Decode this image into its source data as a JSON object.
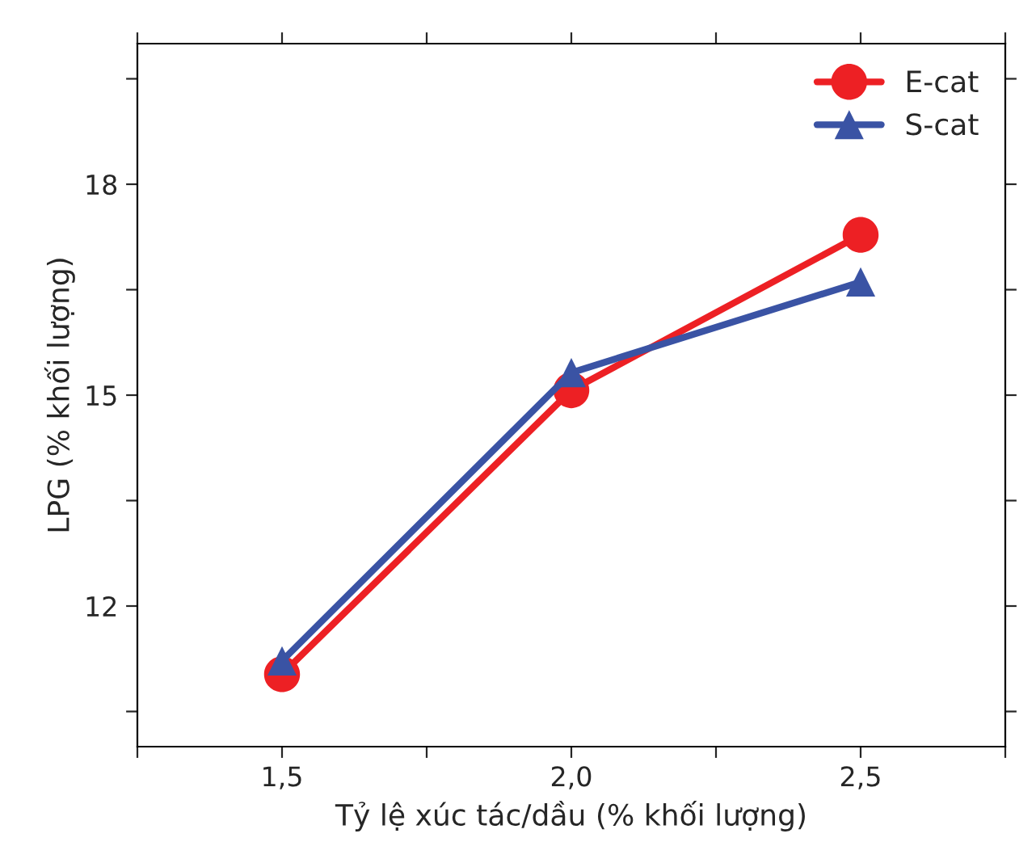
{
  "chart_data": {
    "type": "line",
    "xlabel": "Tỷ lệ xúc tác/dầu (% khối lượng)",
    "ylabel": "LPG (% khối lượng)",
    "x": [
      1.5,
      2.0,
      2.5
    ],
    "series": [
      {
        "name": "E-cat",
        "color": "#ed2024",
        "marker": "circle",
        "values": [
          11.03,
          15.07,
          17.28
        ]
      },
      {
        "name": "S-cat",
        "color": "#3a53a4",
        "marker": "triangle",
        "values": [
          11.22,
          15.32,
          16.61
        ]
      }
    ],
    "xlim": [
      1.25,
      2.75
    ],
    "xticks": [
      {
        "value": 1.25,
        "label": null
      },
      {
        "value": 1.5,
        "label": "1,5"
      },
      {
        "value": 1.75,
        "label": null
      },
      {
        "value": 2.0,
        "label": "2,0"
      },
      {
        "value": 2.25,
        "label": null
      },
      {
        "value": 2.5,
        "label": "2,5"
      },
      {
        "value": 2.75,
        "label": null
      }
    ],
    "ylim": [
      10,
      20
    ],
    "yticks": [
      {
        "value": 10.5,
        "label": null
      },
      12,
      {
        "value": 13.5,
        "label": null
      },
      15,
      {
        "value": 16.5,
        "label": null
      },
      18,
      {
        "value": 19.5,
        "label": null
      }
    ],
    "grid": false,
    "legend": "top right",
    "line_style": "solid"
  }
}
